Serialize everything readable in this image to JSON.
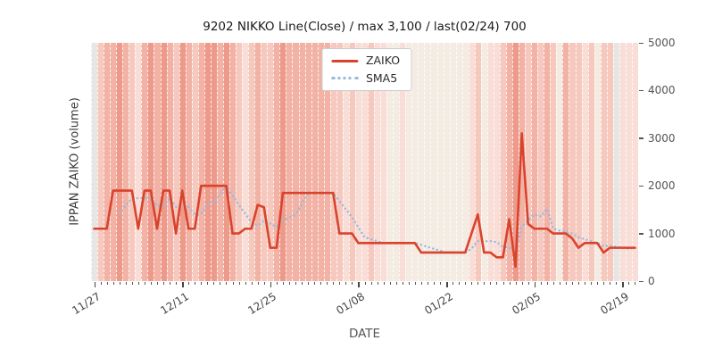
{
  "title": "9202 NIKKO Line(Close) / max 3,100 / last(02/24) 700",
  "legend": [
    {
      "label": "ZAIKO",
      "color": "#d9432c",
      "style": "solid"
    },
    {
      "label": "SMA5",
      "color": "#97bbdc",
      "style": "dotted"
    }
  ],
  "x_axis_title": "DATE",
  "y_axis_title": "IPPAN ZAIKO (volume)",
  "chart_data": {
    "type": "line",
    "title": "9202 NIKKO Line(Close) / max 3,100 / last(02/24) 700",
    "xlabel": "DATE",
    "ylabel": "IPPAN ZAIKO (volume)",
    "ylim": [
      0,
      5000
    ],
    "y_ticks": [
      0,
      1000,
      2000,
      3000,
      4000,
      5000
    ],
    "grid": "vertical-dashed-white-per-day",
    "legend_position": "top-center",
    "x_tick_labels": [
      "11/27",
      "12/11",
      "12/25",
      "01/08",
      "01/22",
      "02/05",
      "02/19"
    ],
    "x_tick_indices": [
      0,
      14,
      28,
      42,
      56,
      70,
      84
    ],
    "series": [
      {
        "name": "ZAIKO",
        "color": "#d9432c",
        "style": "solid",
        "values": [
          1100,
          1100,
          1100,
          1900,
          1900,
          1900,
          1900,
          1100,
          1900,
          1900,
          1100,
          1900,
          1900,
          1000,
          1900,
          1100,
          1100,
          2000,
          2000,
          2000,
          2000,
          2000,
          1000,
          1000,
          1100,
          1100,
          1600,
          1550,
          700,
          700,
          1850,
          1850,
          1850,
          1850,
          1850,
          1850,
          1850,
          1850,
          1850,
          1000,
          1000,
          1000,
          800,
          800,
          800,
          800,
          800,
          800,
          800,
          800,
          800,
          800,
          600,
          600,
          600,
          600,
          600,
          600,
          600,
          600,
          1000,
          1400,
          600,
          600,
          500,
          500,
          1300,
          300,
          3100,
          1200,
          1100,
          1100,
          1100,
          1000,
          1000,
          1000,
          900,
          700,
          800,
          800,
          800,
          600,
          700,
          700,
          700,
          700,
          700
        ]
      },
      {
        "name": "SMA5",
        "color": "#97bbdc",
        "style": "dotted",
        "values": [
          null,
          null,
          null,
          null,
          1420,
          1580,
          1740,
          1740,
          1740,
          1740,
          1580,
          1580,
          1740,
          1560,
          1560,
          1560,
          1400,
          1420,
          1620,
          1640,
          1820,
          2000,
          1800,
          1600,
          1420,
          1240,
          1160,
          1270,
          1210,
          1130,
          1280,
          1330,
          1390,
          1620,
          1850,
          1850,
          1850,
          1850,
          1850,
          1680,
          1510,
          1340,
          1130,
          920,
          880,
          840,
          800,
          800,
          800,
          800,
          800,
          800,
          760,
          720,
          680,
          640,
          600,
          600,
          600,
          600,
          680,
          840,
          840,
          840,
          820,
          720,
          700,
          640,
          1140,
          1280,
          1400,
          1360,
          1520,
          1100,
          1060,
          1040,
          1000,
          920,
          880,
          840,
          800,
          740,
          740,
          720,
          700,
          680,
          700
        ]
      }
    ],
    "background_day_classes": [
      "g",
      "p2",
      "p3",
      "p3",
      "p4",
      "p3",
      "p2",
      "p1",
      "p3",
      "p4",
      "p3",
      "p4",
      "p3",
      "p2",
      "p4",
      "p3",
      "p2",
      "p3",
      "p4",
      "p4",
      "p3",
      "p4",
      "p3",
      "p2",
      "p1",
      "p2",
      "p3",
      "p2",
      "p2",
      "p3",
      "p4",
      "p3",
      "p3",
      "p3",
      "p3",
      "p3",
      "p3",
      "p3",
      "p2",
      "p2",
      "p1",
      "p2",
      "p1",
      "p1",
      "p2",
      "p1",
      "p1",
      "c",
      "c",
      "p1",
      "c",
      "c",
      "c",
      "c",
      "c",
      "c",
      "c",
      "c",
      "c",
      "c",
      "p1",
      "p2",
      "c",
      "p1",
      "p1",
      "p2",
      "p3",
      "p4",
      "p3",
      "p2",
      "p3",
      "p2",
      "p3",
      "p2",
      "c",
      "p3",
      "p2",
      "p2",
      "p1",
      "p2",
      "c",
      "p2",
      "p2",
      "g",
      "p1",
      "p1",
      "p1"
    ],
    "background_palette": {
      "g": "#e8e6e4",
      "c": "#f4ebe2",
      "p1": "#f9ded7",
      "p2": "#f6c9bf",
      "p3": "#f2b2a6",
      "p4": "#ee9a8b"
    }
  }
}
